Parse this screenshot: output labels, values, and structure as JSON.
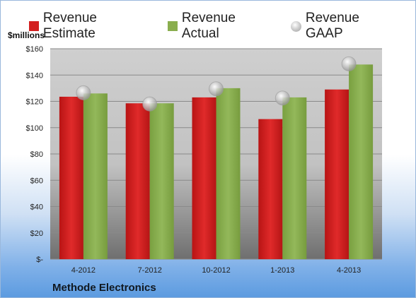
{
  "legend": {
    "estimate_label": "Revenue Estimate",
    "actual_label": "Revenue Actual",
    "gaap_label": "Revenue GAAP"
  },
  "unit_label": "$millions",
  "company": "Methode Electronics",
  "colors": {
    "estimate": "#d32020",
    "actual": "#8aae4e",
    "gaap": "#b8b8b8"
  },
  "chart_data": {
    "type": "bar",
    "categories": [
      "4-2012",
      "7-2012",
      "10-2012",
      "1-2013",
      "4-2013"
    ],
    "series": [
      {
        "name": "Revenue Estimate",
        "values": [
          123.5,
          118.5,
          123,
          106.5,
          129
        ]
      },
      {
        "name": "Revenue Actual",
        "values": [
          126,
          118.5,
          130,
          123,
          148
        ]
      },
      {
        "name": "Revenue GAAP",
        "marker": "circle",
        "values": [
          126.5,
          118,
          129.5,
          122.5,
          148.5
        ]
      }
    ],
    "ylim": [
      0,
      160
    ],
    "yticks": [
      0,
      20,
      40,
      60,
      80,
      100,
      120,
      140,
      160
    ],
    "ytick_labels": [
      "$-",
      "$20",
      "$40",
      "$60",
      "$80",
      "$100",
      "$120",
      "$140",
      "$160"
    ],
    "ylabel": "$millions",
    "grid": true,
    "legend_position": "top"
  }
}
